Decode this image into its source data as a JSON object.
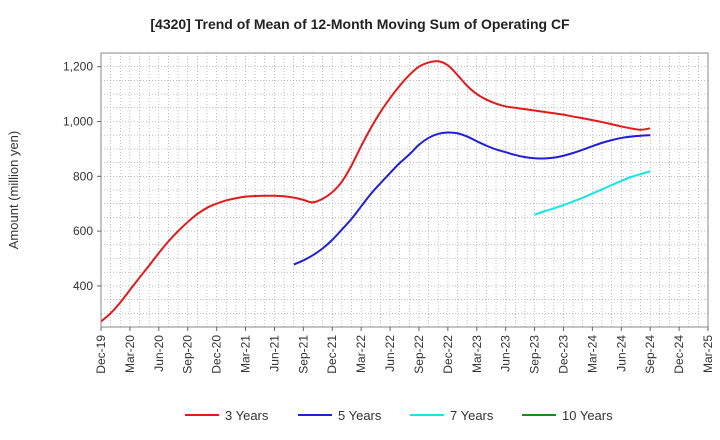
{
  "chart_data": {
    "type": "line",
    "title": "[4320]  Trend of Mean of 12-Month Moving Sum of Operating CF",
    "xlabel": "",
    "ylabel": "Amount (million yen)",
    "ylim": [
      250,
      1250
    ],
    "yticks": [
      400,
      600,
      800,
      1000,
      1200
    ],
    "ytick_labels": [
      "400",
      "600",
      "800",
      "1,000",
      "1,200"
    ],
    "grid": true,
    "legend_position": "bottom",
    "categories": [
      "Dec-19",
      "Mar-20",
      "Jun-20",
      "Sep-20",
      "Dec-20",
      "Mar-21",
      "Jun-21",
      "Sep-21",
      "Dec-21",
      "Mar-22",
      "Jun-22",
      "Sep-22",
      "Dec-22",
      "Mar-23",
      "Jun-23",
      "Sep-23",
      "Dec-23",
      "Mar-24",
      "Jun-24",
      "Sep-24",
      "Dec-24",
      "Mar-25"
    ],
    "series": [
      {
        "name": "3 Years",
        "color": "#e31a1c",
        "x": [
          0,
          0.33,
          0.67,
          1,
          1.33,
          1.67,
          2,
          2.33,
          2.67,
          3,
          3.33,
          3.67,
          4,
          4.33,
          4.67,
          5,
          5.33,
          5.67,
          6,
          6.33,
          6.67,
          7,
          7.33,
          7.67,
          8,
          8.33,
          8.67,
          9,
          9.33,
          9.67,
          10,
          10.33,
          10.67,
          11,
          11.33,
          11.67,
          12,
          12.33,
          12.67,
          13,
          13.33,
          13.67,
          14,
          14.33,
          14.67,
          15,
          15.33,
          15.67,
          16,
          16.33,
          16.67,
          17,
          17.33,
          17.67,
          18,
          18.33,
          18.67,
          19
        ],
        "values": [
          270,
          300,
          340,
          385,
          430,
          475,
          520,
          562,
          600,
          633,
          662,
          685,
          700,
          712,
          720,
          726,
          728,
          729,
          729,
          727,
          722,
          714,
          705,
          718,
          742,
          780,
          840,
          910,
          975,
          1035,
          1085,
          1130,
          1170,
          1200,
          1215,
          1220,
          1205,
          1170,
          1130,
          1100,
          1080,
          1065,
          1055,
          1050,
          1045,
          1040,
          1035,
          1030,
          1025,
          1018,
          1012,
          1005,
          998,
          990,
          982,
          975,
          970,
          975
        ]
      },
      {
        "name": "5 Years",
        "color": "#1f1fd8",
        "x": [
          6.67,
          7,
          7.33,
          7.67,
          8,
          8.33,
          8.67,
          9,
          9.33,
          9.67,
          10,
          10.33,
          10.67,
          11,
          11.33,
          11.67,
          12,
          12.33,
          12.67,
          13,
          13.33,
          13.67,
          14,
          14.33,
          14.67,
          15,
          15.33,
          15.67,
          16,
          16.33,
          16.67,
          17,
          17.33,
          17.67,
          18,
          18.33,
          18.67,
          19
        ],
        "values": [
          478,
          493,
          512,
          537,
          568,
          605,
          645,
          690,
          735,
          775,
          812,
          848,
          880,
          915,
          940,
          955,
          960,
          957,
          945,
          928,
          912,
          898,
          888,
          878,
          870,
          866,
          865,
          868,
          875,
          885,
          897,
          910,
          922,
          932,
          940,
          945,
          948,
          950
        ]
      },
      {
        "name": "7 Years",
        "color": "#17e6e6",
        "x": [
          15,
          15.33,
          15.67,
          16,
          16.33,
          16.67,
          17,
          17.33,
          17.67,
          18,
          18.33,
          18.67,
          19
        ],
        "values": [
          660,
          672,
          683,
          695,
          708,
          722,
          737,
          752,
          768,
          783,
          797,
          808,
          818
        ]
      },
      {
        "name": "10 Years",
        "color": "#1a8a1a",
        "x": [],
        "values": []
      }
    ]
  }
}
